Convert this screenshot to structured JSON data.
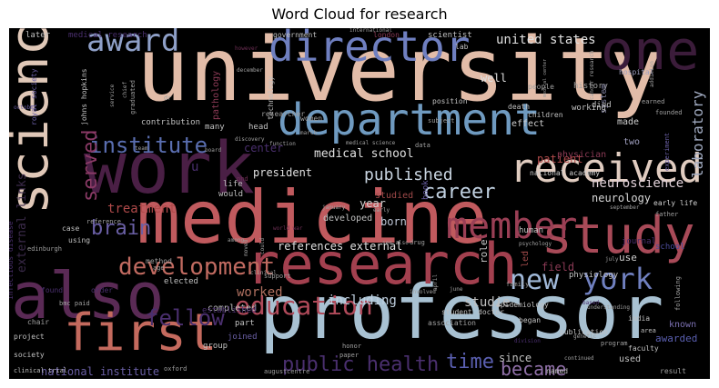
{
  "chart_data": {
    "type": "wordcloud",
    "title": "Word Cloud for research",
    "background": "#000000",
    "palette": [
      "#e2bca8",
      "#a8c1d2",
      "#6f8fc0",
      "#6a5fa5",
      "#4a2f6e",
      "#6e2f55",
      "#a3404f",
      "#c46a5e",
      "#3b1c3a"
    ],
    "words": [
      {
        "text": "university",
        "weight": 100,
        "color": "#e2bca8"
      },
      {
        "text": "professor",
        "weight": 88,
        "color": "#a8c1d2"
      },
      {
        "text": "medicine",
        "weight": 82,
        "color": "#c05a5e"
      },
      {
        "text": "work",
        "weight": 78,
        "color": "#4a1f45"
      },
      {
        "text": "also",
        "weight": 74,
        "color": "#5a2a55"
      },
      {
        "text": "one",
        "weight": 70,
        "color": "#3b1c3a"
      },
      {
        "text": "research",
        "weight": 66,
        "color": "#a3404f"
      },
      {
        "text": "department",
        "weight": 62,
        "color": "#6f9ac0"
      },
      {
        "text": "study",
        "weight": 56,
        "color": "#a84a58"
      },
      {
        "text": "science",
        "weight": 54,
        "color": "#e0c8b8"
      },
      {
        "text": "director",
        "weight": 50,
        "color": "#6f7fc0"
      },
      {
        "text": "first",
        "weight": 50,
        "color": "#c46a5e"
      },
      {
        "text": "award",
        "weight": 42,
        "color": "#8fa0c8"
      },
      {
        "text": "received",
        "weight": 40,
        "color": "#e0ccc0"
      },
      {
        "text": "member",
        "weight": 36,
        "color": "#9a3f55"
      },
      {
        "text": "development",
        "weight": 28,
        "color": "#c06a60"
      },
      {
        "text": "education",
        "weight": 28,
        "color": "#b04a5a"
      },
      {
        "text": "york",
        "weight": 30,
        "color": "#7080c0"
      },
      {
        "text": "new",
        "weight": 28,
        "color": "#a0b8d8"
      },
      {
        "text": "fellow",
        "weight": 26,
        "color": "#4a2f6e"
      },
      {
        "text": "institute",
        "weight": 24,
        "color": "#5a6eb0"
      },
      {
        "text": "served",
        "weight": 24,
        "color": "#8a3a66"
      },
      {
        "text": "brain",
        "weight": 22,
        "color": "#6a5fa5"
      },
      {
        "text": "career",
        "weight": 20,
        "color": "#c0d0e0"
      },
      {
        "text": "public health",
        "weight": 22,
        "color": "#4a2f6e"
      },
      {
        "text": "time",
        "weight": 22,
        "color": "#5a5fb0"
      },
      {
        "text": "became",
        "weight": 18,
        "color": "#9070a8"
      },
      {
        "text": "published",
        "weight": 18,
        "color": "#c8d4e0"
      },
      {
        "text": "laboratory",
        "weight": 16,
        "color": "#a0aac0"
      },
      {
        "text": "neuroscience",
        "weight": 14,
        "color": "#e0d0d8"
      },
      {
        "text": "external links",
        "weight": 14,
        "color": "#3b2a4a"
      },
      {
        "text": "treatment",
        "weight": 14,
        "color": "#b04a4a"
      },
      {
        "text": "worked",
        "weight": 14,
        "color": "#b07060"
      },
      {
        "text": "including",
        "weight": 14,
        "color": "#c0d0e0"
      },
      {
        "text": "united states",
        "weight": 14,
        "color": "#e0e0e0"
      },
      {
        "text": "national institute",
        "weight": 12,
        "color": "#6a5fa5"
      },
      {
        "text": "medical school",
        "weight": 12,
        "color": "#e0e0e0"
      },
      {
        "text": "patient",
        "weight": 12,
        "color": "#b04a4a"
      },
      {
        "text": "center",
        "weight": 12,
        "color": "#4a2f6e"
      },
      {
        "text": "president",
        "weight": 11,
        "color": "#e0e0e0"
      },
      {
        "text": "well",
        "weight": 11,
        "color": "#e0e0e0"
      },
      {
        "text": "year",
        "weight": 11,
        "color": "#d0d0d0"
      },
      {
        "text": "born",
        "weight": 11,
        "color": "#c0c8d8"
      },
      {
        "text": "neurology",
        "weight": 11,
        "color": "#d8d8d8"
      },
      {
        "text": "references external",
        "weight": 11,
        "color": "#e0e0e0"
      },
      {
        "text": "field",
        "weight": 11,
        "color": "#8a3a55"
      },
      {
        "text": "since",
        "weight": 11,
        "color": "#c0c0c0"
      },
      {
        "text": "awarded",
        "weight": 11,
        "color": "#5a5fb0"
      },
      {
        "text": "developed",
        "weight": 10,
        "color": "#c0c0c0"
      },
      {
        "text": "completed",
        "weight": 10,
        "color": "#c0c0c0"
      },
      {
        "text": "studied",
        "weight": 10,
        "color": "#a04a4a"
      },
      {
        "text": "led",
        "weight": 10,
        "color": "#a04a4a"
      },
      {
        "text": "use",
        "weight": 10,
        "color": "#d0d0d0"
      },
      {
        "text": "role",
        "weight": 9,
        "color": "#c8c8c8"
      },
      {
        "text": "known",
        "weight": 9,
        "color": "#7a6fb0"
      },
      {
        "text": "used",
        "weight": 9,
        "color": "#c0c0c0"
      },
      {
        "text": "made",
        "weight": 9,
        "color": "#d0d0d0"
      },
      {
        "text": "two",
        "weight": 9,
        "color": "#a0a0c0"
      },
      {
        "text": "physician",
        "weight": 9,
        "color": "#8a3a55"
      },
      {
        "text": "effect",
        "weight": 9,
        "color": "#d0d0d0"
      },
      {
        "text": "elected",
        "weight": 9,
        "color": "#c0c0c0"
      },
      {
        "text": "pathology",
        "weight": 9,
        "color": "#8a3a55"
      },
      {
        "text": "contribution",
        "weight": 8,
        "color": "#c0c0c0"
      },
      {
        "text": "medical research",
        "weight": 8,
        "color": "#4a2f6e"
      },
      {
        "text": "later",
        "weight": 8,
        "color": "#c0c0c0"
      },
      {
        "text": "scientist",
        "weight": 8,
        "color": "#c0c0c0"
      },
      {
        "text": "died",
        "weight": 8,
        "color": "#c0c0c0"
      },
      {
        "text": "history",
        "weight": 8,
        "color": "#a0a0a0"
      },
      {
        "text": "system",
        "weight": 8,
        "color": "#8080a0"
      },
      {
        "text": "working",
        "weight": 8,
        "color": "#c0c0c0"
      },
      {
        "text": "national academy",
        "weight": 8,
        "color": "#d0d0d0"
      },
      {
        "text": "early life",
        "weight": 8,
        "color": "#d0d0d0"
      },
      {
        "text": "school",
        "weight": 8,
        "color": "#4a4a9a"
      },
      {
        "text": "journal",
        "weight": 8,
        "color": "#4a2f6e"
      },
      {
        "text": "physiology",
        "weight": 8,
        "color": "#c0c0c0"
      },
      {
        "text": "book",
        "weight": 8,
        "color": "#6a5fa5"
      },
      {
        "text": "human",
        "weight": 8,
        "color": "#c0c0c0"
      },
      {
        "text": "life",
        "weight": 8,
        "color": "#c0c0c0"
      },
      {
        "text": "would",
        "weight": 8,
        "color": "#c0c0c0"
      },
      {
        "text": "many",
        "weight": 8,
        "color": "#c0c0c0"
      },
      {
        "text": "head",
        "weight": 8,
        "color": "#c0c0c0"
      },
      {
        "text": "women",
        "weight": 7,
        "color": "#a0a0a0"
      },
      {
        "text": "people",
        "weight": 7,
        "color": "#a0a0a0"
      },
      {
        "text": "children",
        "weight": 7,
        "color": "#c0c0c0"
      },
      {
        "text": "position",
        "weight": 7,
        "color": "#c0c0c0"
      },
      {
        "text": "death",
        "weight": 7,
        "color": "#c0c0c0"
      },
      {
        "text": "researcher",
        "weight": 7,
        "color": "#a0a0a0"
      },
      {
        "text": "technology",
        "weight": 7,
        "color": "#c0c0c0"
      },
      {
        "text": "government",
        "weight": 7,
        "color": "#c0c0c0"
      },
      {
        "text": "lab",
        "weight": 7,
        "color": "#c0c0c0"
      },
      {
        "text": "london",
        "weight": 7,
        "color": "#8a3a55"
      },
      {
        "text": "hospital",
        "weight": 7,
        "color": "#a0a0c0"
      },
      {
        "text": "royal society",
        "weight": 7,
        "color": "#6a5fa5"
      },
      {
        "text": "johns hopkins",
        "weight": 7,
        "color": "#c0c0c0"
      },
      {
        "text": "infectious disease",
        "weight": 7,
        "color": "#4a2f6e"
      },
      {
        "text": "case",
        "weight": 7,
        "color": "#c0c0c0"
      },
      {
        "text": "using",
        "weight": 7,
        "color": "#c0c0c0"
      },
      {
        "text": "method",
        "weight": 7,
        "color": "#a0a0a0"
      },
      {
        "text": "society",
        "weight": 7,
        "color": "#c0c0c0"
      },
      {
        "text": "project",
        "weight": 7,
        "color": "#c0c0c0"
      },
      {
        "text": "chair",
        "weight": 7,
        "color": "#a0a0a0"
      },
      {
        "text": "found",
        "weight": 7,
        "color": "#4a2f6e"
      },
      {
        "text": "order",
        "weight": 7,
        "color": "#4a2f6e"
      },
      {
        "text": "group",
        "weight": 8,
        "color": "#c0c0c0"
      },
      {
        "text": "joined",
        "weight": 8,
        "color": "#6a5fa5"
      },
      {
        "text": "part",
        "weight": 8,
        "color": "#c0c0c0"
      },
      {
        "text": "established",
        "weight": 8,
        "color": "#4a2f6e"
      },
      {
        "text": "student",
        "weight": 7,
        "color": "#c0c0c0"
      },
      {
        "text": "doctor",
        "weight": 7,
        "color": "#c0c0c0"
      },
      {
        "text": "association",
        "weight": 7,
        "color": "#a0a0a0"
      },
      {
        "text": "epidemiology",
        "weight": 7,
        "color": "#c0c0c0"
      },
      {
        "text": "publication",
        "weight": 7,
        "color": "#c0c0c0"
      },
      {
        "text": "india",
        "weight": 7,
        "color": "#c0c0c0"
      },
      {
        "text": "faculty",
        "weight": 7,
        "color": "#c0c0c0"
      },
      {
        "text": "result",
        "weight": 7,
        "color": "#a0a0a0"
      },
      {
        "text": "honor",
        "weight": 6,
        "color": "#a0a0a0"
      },
      {
        "text": "paper",
        "weight": 6,
        "color": "#a0a0a0"
      },
      {
        "text": "named",
        "weight": 7,
        "color": "#c0c0c0"
      },
      {
        "text": "clinical trial",
        "weight": 6,
        "color": "#c0c0c0"
      },
      {
        "text": "oxford",
        "weight": 6,
        "color": "#a0a0a0"
      },
      {
        "text": "august",
        "weight": 6,
        "color": "#a0a0a0"
      },
      {
        "text": "centre",
        "weight": 6,
        "color": "#a0a0a0"
      },
      {
        "text": "support",
        "weight": 6,
        "color": "#a0a0a0"
      },
      {
        "text": "data",
        "weight": 6,
        "color": "#a0a0a0"
      },
      {
        "text": "subject",
        "weight": 6,
        "color": "#a0a0a0"
      },
      {
        "text": "began",
        "weight": 7,
        "color": "#c0c0c0"
      },
      {
        "text": "family",
        "weight": 6,
        "color": "#a0a0a0"
      },
      {
        "text": "program",
        "weight": 6,
        "color": "#a0a0a0"
      },
      {
        "text": "following",
        "weight": 6,
        "color": "#a0a0a0"
      },
      {
        "text": "father",
        "weight": 6,
        "color": "#a0a0a0"
      },
      {
        "text": "earned",
        "weight": 6,
        "color": "#a0a0a0"
      },
      {
        "text": "founded",
        "weight": 6,
        "color": "#a0a0a0"
      },
      {
        "text": "experiment",
        "weight": 6,
        "color": "#6a5fa5"
      },
      {
        "text": "graduated",
        "weight": 6,
        "color": "#a0a0a0"
      },
      {
        "text": "age",
        "weight": 6,
        "color": "#a0a0a0"
      },
      {
        "text": "bmc paid",
        "weight": 6,
        "color": "#a0a0a0"
      },
      {
        "text": "edinburgh",
        "weight": 6,
        "color": "#a0a0a0"
      },
      {
        "text": "reference",
        "weight": 6,
        "color": "#a0a0a0"
      },
      {
        "text": "international",
        "weight": 5,
        "color": "#a0a0a0"
      },
      {
        "text": "scientist",
        "weight": 5,
        "color": "#a0a0a0"
      },
      {
        "text": "however",
        "weight": 5,
        "color": "#6e2f55"
      },
      {
        "text": "december",
        "weight": 5,
        "color": "#a0a0a0"
      },
      {
        "text": "october",
        "weight": 5,
        "color": "#6a5fa5"
      },
      {
        "text": "service",
        "weight": 5,
        "color": "#a0a0a0"
      },
      {
        "text": "chief",
        "weight": 5,
        "color": "#a0a0a0"
      },
      {
        "text": "january",
        "weight": 5,
        "color": "#a0a0a0"
      },
      {
        "text": "september",
        "weight": 5,
        "color": "#a0a0a0"
      },
      {
        "text": "july",
        "weight": 5,
        "color": "#a0a0a0"
      },
      {
        "text": "june",
        "weight": 5,
        "color": "#a0a0a0"
      },
      {
        "text": "april",
        "weight": 5,
        "color": "#a0a0a0"
      },
      {
        "text": "march",
        "weight": 5,
        "color": "#a0a0a0"
      },
      {
        "text": "early",
        "weight": 5,
        "color": "#a0a0a0"
      },
      {
        "text": "see also",
        "weight": 5,
        "color": "#a0a0a0"
      },
      {
        "text": "drug",
        "weight": 6,
        "color": "#a0a0a0"
      },
      {
        "text": "among",
        "weight": 5,
        "color": "#a0a0a0"
      },
      {
        "text": "moved",
        "weight": 5,
        "color": "#a0a0a0"
      },
      {
        "text": "could",
        "weight": 5,
        "color": "#a0a0a0"
      },
      {
        "text": "clinical",
        "weight": 5,
        "color": "#a0a0a0"
      },
      {
        "text": "involved",
        "weight": 5,
        "color": "#a0a0a0"
      },
      {
        "text": "discovery",
        "weight": 5,
        "color": "#a0a0a0"
      },
      {
        "text": "function",
        "weight": 5,
        "color": "#a0a0a0"
      },
      {
        "text": "board",
        "weight": 5,
        "color": "#a0a0a0"
      },
      {
        "text": "team",
        "weight": 5,
        "color": "#a0a0a0"
      },
      {
        "text": "addition",
        "weight": 5,
        "color": "#a0a0a0"
      },
      {
        "text": "understanding",
        "weight": 5,
        "color": "#a0a0a0"
      },
      {
        "text": "genetic",
        "weight": 5,
        "color": "#a0a0a0"
      },
      {
        "text": "continued",
        "weight": 5,
        "color": "#a0a0a0"
      },
      {
        "text": "psychology",
        "weight": 5,
        "color": "#a0a0a0"
      },
      {
        "text": "division",
        "weight": 5,
        "color": "#4a2f6e"
      },
      {
        "text": "cancer research",
        "weight": 5,
        "color": "#a0a0a0"
      },
      {
        "text": "world war",
        "weight": 5,
        "color": "#6e2f55"
      },
      {
        "text": "medical science",
        "weight": 5,
        "color": "#a0a0a0"
      },
      {
        "text": "medical center",
        "weight": 5,
        "color": "#a0a0a0"
      },
      {
        "text": "based",
        "weight": 5,
        "color": "#4a2f6e"
      },
      {
        "text": "phd",
        "weight": 6,
        "color": "#6e2f55"
      },
      {
        "text": "area",
        "weight": 6,
        "color": "#c0c0c0"
      },
      {
        "text": "u",
        "weight": 8,
        "color": "#4a2f6e"
      },
      {
        "text": "dr",
        "weight": 5,
        "color": "#a0a0a0"
      },
      {
        "text": "studie",
        "weight": 12,
        "color": "#c0c0c0"
      }
    ]
  }
}
